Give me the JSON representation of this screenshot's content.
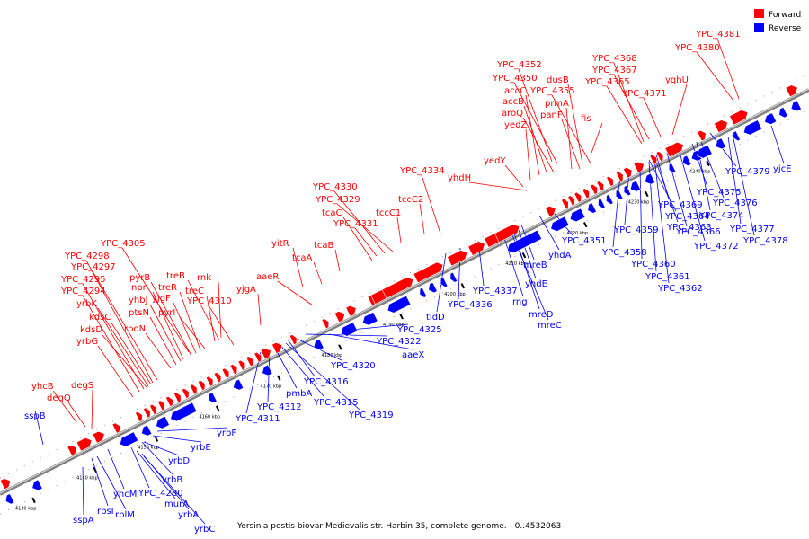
{
  "caption": "Yersinia pestis biovar Medievalis str. Harbin 35, complete genome. - 0..4532063",
  "legend": [
    {
      "label": "Forward",
      "color": "#ff0000"
    },
    {
      "label": "Reverse",
      "color": "#0000ff"
    }
  ],
  "colors": {
    "forward": "#ff0000",
    "reverse": "#0000ff",
    "axis": "#808080"
  },
  "axis": {
    "start_kbp": 4126,
    "end_kbp": 4258
  },
  "ticks": [
    "4130 kbp",
    "4140 kbp",
    "4150 kbp",
    "4160 kbp",
    "4170 kbp",
    "4180 kbp",
    "4190 kbp",
    "4200 kbp",
    "4210 kbp",
    "4220 kbp",
    "4230 kbp",
    "4240 kbp"
  ],
  "forward_labels": [
    "YPC_4381",
    "YPC_4380",
    "YPC_4368",
    "YPC_4367",
    "YPC_4365",
    "yghU",
    "YPC_4371",
    "YPC_4352",
    "YPC_4350",
    "dusB",
    "YPC_4355",
    "accC",
    "accB",
    "prmA",
    "aroQ",
    "panF",
    "yedZ",
    "fis",
    "yedY",
    "YPC_4334",
    "yhdH",
    "tccC2",
    "tccC1",
    "YPC_4330",
    "YPC_4329",
    "tcaC",
    "YPC_4331",
    "yitR",
    "tcaB",
    "tcaA",
    "YPC_4305",
    "rnk",
    "treB",
    "YPC_4310",
    "yjgA",
    "aaeR",
    "treC",
    "YPC_4298",
    "YPC_4297",
    "pyrB",
    "npr",
    "treR",
    "YPC_4295",
    "yhbJ",
    "yjgF",
    "YPC_4294",
    "ptsN",
    "pyrI",
    "yrbK",
    "kdsC",
    "rpoN",
    "kdsD",
    "yrbG",
    "yhcB",
    "degS",
    "degQ"
  ],
  "reverse_labels": [
    "yjcE",
    "YPC_4379",
    "YPC_4375",
    "YPC_4376",
    "YPC_4369",
    "YPC_4374",
    "YPC_4364",
    "YPC_4377",
    "YPC_4366",
    "YPC_4372",
    "YPC_4359",
    "YPC_4363",
    "YPC_4378",
    "YPC_4358",
    "YPC_4360",
    "YPC_4361",
    "YPC_4362",
    "YPC_4351",
    "yhdA",
    "mreB",
    "YPC_4337",
    "yhdE",
    "YPC_4336",
    "rng",
    "mreD",
    "mreC",
    "tldD",
    "YPC_4325",
    "YPC_4322",
    "aaeX",
    "YPC_4320",
    "YPC_4316",
    "YPC_4315",
    "YPC_4319",
    "pmbA",
    "YPC_4312",
    "YPC_4311",
    "yrbF",
    "yrbE",
    "yrbD",
    "yrbB",
    "YPC_4280",
    "yhcM",
    "murA",
    "rpsI",
    "rplM",
    "yrbA",
    "yrbC",
    "sspB",
    "sspA"
  ]
}
